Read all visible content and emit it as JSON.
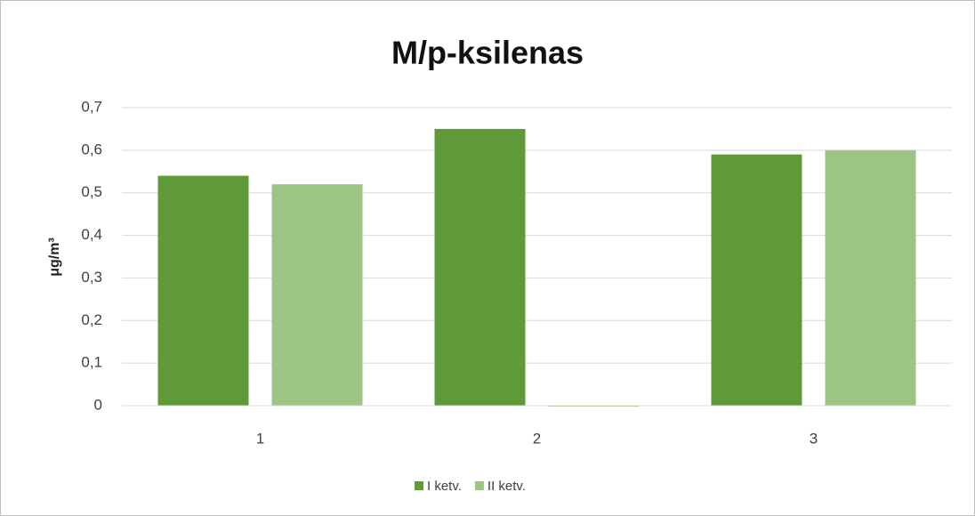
{
  "chart_data": {
    "type": "bar",
    "title": "M/p-ksilenas",
    "y_label": "μg/m³",
    "categories": [
      "1",
      "2",
      "3"
    ],
    "series": [
      {
        "name": "I ketv.",
        "color": "#5e9b38",
        "values": [
          0.54,
          0.65,
          0.59
        ]
      },
      {
        "name": "II ketv.",
        "color": "#9cc585",
        "values": [
          0.52,
          0,
          0.6
        ]
      }
    ],
    "ylim": [
      0,
      0.7
    ],
    "yticks": [
      0,
      {
        "value": 0.1,
        "label": "0,1"
      },
      {
        "value": 0.2,
        "label": "0,2"
      },
      {
        "value": 0.3,
        "label": "0,3"
      },
      {
        "value": 0.4,
        "label": "0,4"
      },
      {
        "value": 0.5,
        "label": "0,5"
      },
      {
        "value": 0.6,
        "label": "0,6"
      },
      {
        "value": 0.7,
        "label": "0,7"
      }
    ],
    "grid": true,
    "legend": "bottom"
  }
}
